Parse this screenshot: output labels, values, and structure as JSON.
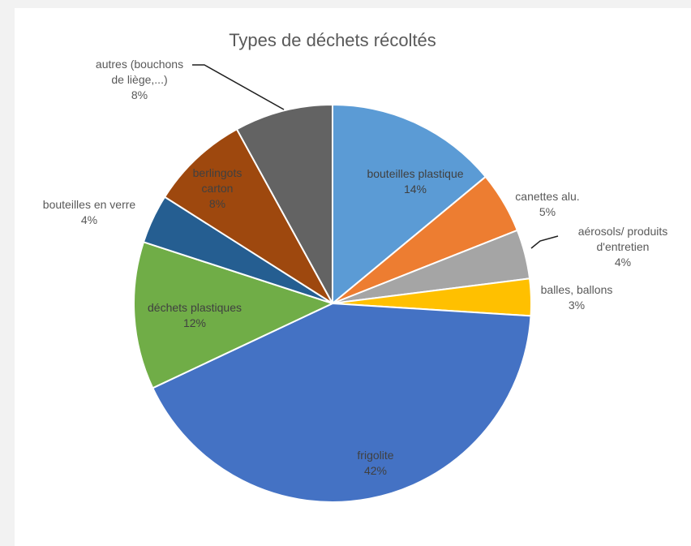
{
  "chart_data": {
    "type": "pie",
    "title": "Types de déchets récoltés",
    "slices": [
      {
        "label": "bouteilles plastique",
        "percent_label": "14%",
        "value": 14,
        "color": "#5b9bd5"
      },
      {
        "label": "canettes alu.",
        "percent_label": "5%",
        "value": 5,
        "color": "#ed7d31"
      },
      {
        "label": "aérosols/ produits d'entretien",
        "percent_label": "4%",
        "value": 4,
        "color": "#a5a5a5"
      },
      {
        "label": "balles, ballons",
        "percent_label": "3%",
        "value": 3,
        "color": "#ffc000"
      },
      {
        "label": "frigolite",
        "percent_label": "42%",
        "value": 42,
        "color": "#4472c4"
      },
      {
        "label": "déchets plastiques",
        "percent_label": "12%",
        "value": 12,
        "color": "#70ad47"
      },
      {
        "label": "bouteilles en verre",
        "percent_label": "4%",
        "value": 4,
        "color": "#255e91"
      },
      {
        "label": "berlingots carton",
        "percent_label": "8%",
        "value": 8,
        "color": "#9e480e"
      },
      {
        "label": "autres (bouchons de liège,...)",
        "percent_label": "8%",
        "value": 8,
        "color": "#636363"
      }
    ]
  }
}
